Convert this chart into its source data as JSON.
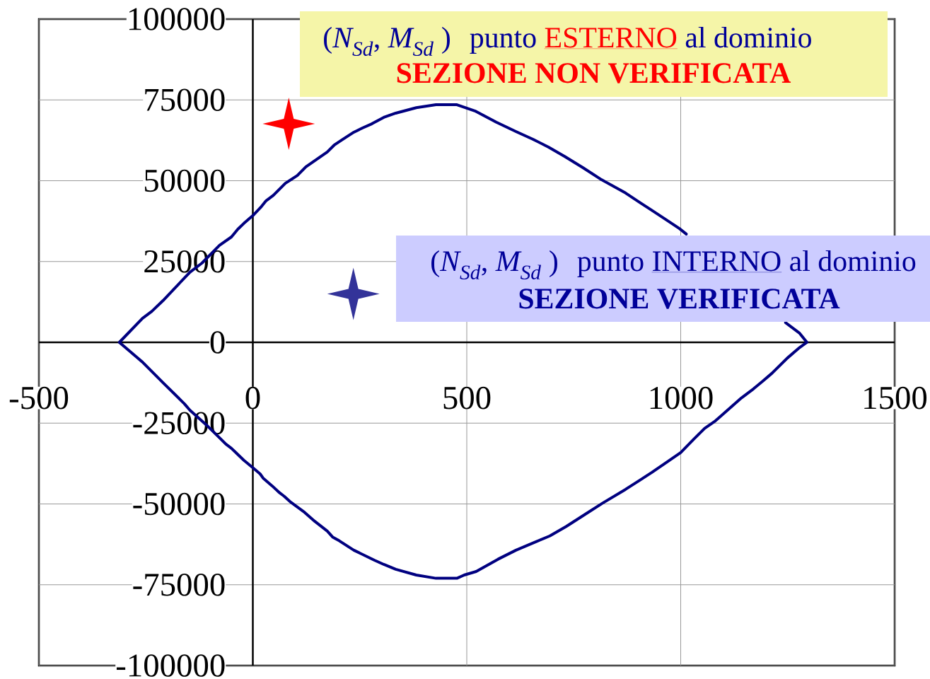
{
  "chart_data": {
    "type": "line",
    "xlim": [
      -500,
      1500
    ],
    "ylim": [
      -100000,
      100000
    ],
    "xticks": [
      -500,
      0,
      500,
      1000,
      1500
    ],
    "yticks": [
      -100000,
      -75000,
      -50000,
      -25000,
      0,
      25000,
      50000,
      75000,
      100000
    ],
    "grid": true,
    "series": [
      {
        "color": "#000080",
        "x": [
          -312,
          -258,
          -236,
          -210,
          -147,
          -119,
          -78,
          -50,
          -35,
          -21,
          0,
          20,
          31,
          48,
          76,
          104,
          124,
          174,
          190,
          208,
          236,
          256,
          278,
          306,
          334,
          382,
          428,
          477,
          519,
          569,
          615,
          655,
          691,
          729,
          772,
          815,
          871,
          904,
          932,
          964,
          997,
          1013,
          null,
          1245,
          1278,
          1295,
          1278,
          1249,
          1213,
          1192,
          1170,
          1142,
          1106,
          1081,
          1056,
          1031,
          1000,
          964,
          932,
          904,
          871,
          818,
          779,
          732,
          694,
          658,
          615,
          573,
          522,
          494,
          477,
          428,
          382,
          334,
          306,
          284,
          236,
          202,
          187,
          174,
          145,
          121,
          89,
          73,
          63,
          45,
          24,
          17,
          0,
          -21,
          -39,
          -50,
          -63,
          -78,
          -105,
          -147,
          -160,
          -209,
          -237,
          -258,
          -312
        ],
        "values": [
          0,
          7400,
          9600,
          12900,
          21700,
          24500,
          30000,
          32600,
          35000,
          36800,
          39200,
          42000,
          43800,
          45500,
          49200,
          51600,
          54300,
          58900,
          61000,
          62600,
          65000,
          66300,
          67600,
          69600,
          70900,
          72600,
          73500,
          73500,
          71600,
          68100,
          65200,
          62800,
          60400,
          57500,
          54000,
          50300,
          46200,
          43300,
          40900,
          38100,
          35200,
          33500,
          null,
          6100,
          2800,
          0,
          -1600,
          -4900,
          -9600,
          -12000,
          -14400,
          -17200,
          -21400,
          -24300,
          -26600,
          -29900,
          -34100,
          -37400,
          -40300,
          -42700,
          -45500,
          -49700,
          -53000,
          -57000,
          -59900,
          -61900,
          -64300,
          -67100,
          -70900,
          -72000,
          -73000,
          -73000,
          -72000,
          -70200,
          -68700,
          -67400,
          -64300,
          -61400,
          -60300,
          -58400,
          -55400,
          -52600,
          -49500,
          -47600,
          -46600,
          -44400,
          -42000,
          -40700,
          -38800,
          -36500,
          -34200,
          -32800,
          -31500,
          -29500,
          -26000,
          -21000,
          -19000,
          -12600,
          -8900,
          -6100,
          0
        ]
      },
      {
        "type": "scatter",
        "color": "#ff0000",
        "marker": "star",
        "x": [
          84
        ],
        "values": [
          67600
        ]
      },
      {
        "type": "scatter",
        "color": "#333399",
        "marker": "star",
        "x": [
          235
        ],
        "values": [
          15000
        ]
      }
    ],
    "annotations": [
      "(*N$_{Sd}$*, *M$_{Sd}$* )",
      "punto",
      "ESTERNO",
      "al dominio",
      "SEZIONE NON VERIFICATA",
      "(*N$_{Sd}$*, *M$_{Sd}$* )",
      "punto",
      "INTERNO",
      "al dominio",
      "SEZIONE VERIFICATA"
    ]
  }
}
